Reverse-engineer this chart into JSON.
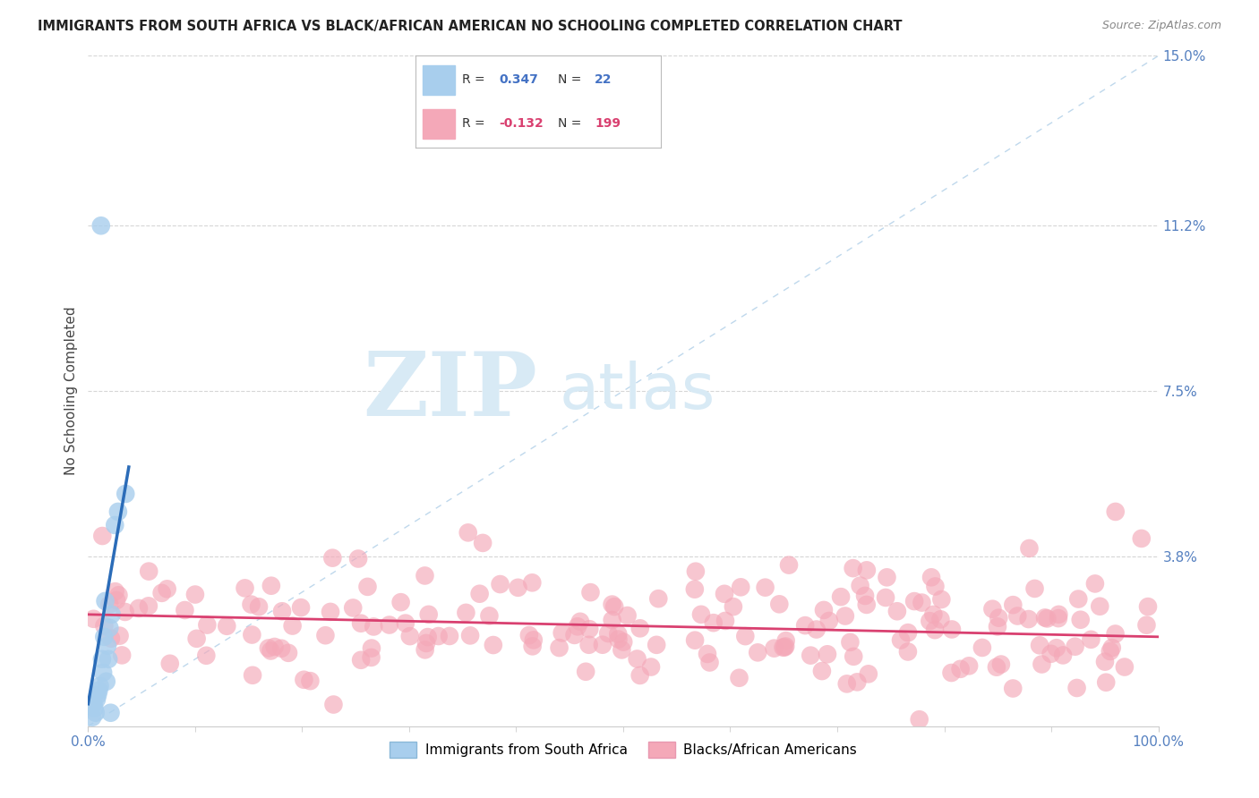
{
  "title": "IMMIGRANTS FROM SOUTH AFRICA VS BLACK/AFRICAN AMERICAN NO SCHOOLING COMPLETED CORRELATION CHART",
  "source": "Source: ZipAtlas.com",
  "ylabel": "No Schooling Completed",
  "x_min": 0.0,
  "x_max": 100.0,
  "y_min": 0.0,
  "y_max": 15.0,
  "y_ticks": [
    3.8,
    7.5,
    11.2,
    15.0
  ],
  "x_ticks_labels": [
    "0.0%",
    "100.0%"
  ],
  "x_ticks_pos": [
    0.0,
    100.0
  ],
  "r1": 0.347,
  "n1": 22,
  "r2": -0.132,
  "n2": 199,
  "color_blue_scatter": "#A8CEED",
  "color_blue_line": "#2B6CB8",
  "color_pink_scatter": "#F4A8B8",
  "color_pink_line": "#D94070",
  "color_diag": "#B8D4EA",
  "watermark_zip": "ZIP",
  "watermark_atlas": "atlas",
  "background_color": "#FFFFFF",
  "legend_label_blue": "Immigrants from South Africa",
  "legend_label_pink": "Blacks/African Americans",
  "blue_scatter_x": [
    0.4,
    0.5,
    0.6,
    0.7,
    0.8,
    0.9,
    1.0,
    1.1,
    1.2,
    1.3,
    1.4,
    1.5,
    1.6,
    1.7,
    1.8,
    1.9,
    2.0,
    2.1,
    2.2,
    2.5,
    2.8,
    3.5
  ],
  "blue_scatter_y": [
    0.2,
    0.5,
    0.4,
    0.3,
    0.6,
    0.7,
    0.8,
    0.9,
    11.2,
    1.5,
    1.2,
    2.0,
    2.8,
    1.0,
    1.8,
    1.5,
    2.2,
    0.3,
    2.5,
    4.5,
    4.8,
    5.2
  ],
  "pink_trendline_x": [
    0.0,
    100.0
  ],
  "pink_trendline_y": [
    2.5,
    2.0
  ],
  "blue_trendline_x": [
    0.0,
    3.8
  ],
  "blue_trendline_y": [
    0.5,
    5.8
  ]
}
